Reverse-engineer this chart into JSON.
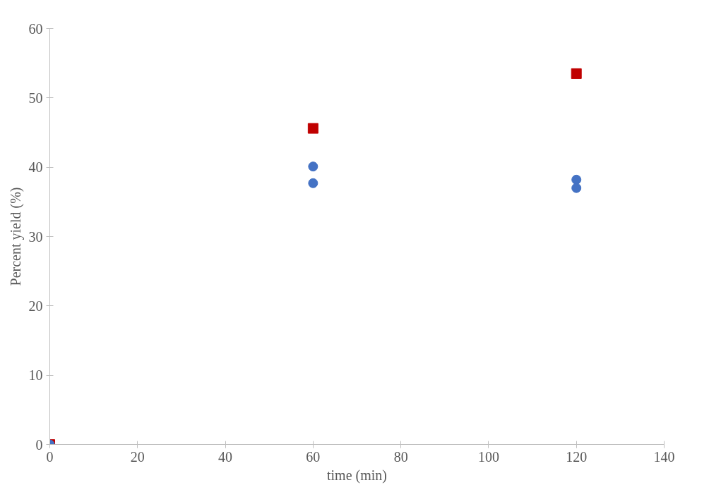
{
  "chart_data": {
    "type": "scatter",
    "xlabel": "time (min)",
    "ylabel": "Percent yield (%)",
    "xlim": [
      0,
      140
    ],
    "ylim": [
      0,
      60
    ],
    "xticks": [
      0,
      20,
      40,
      60,
      80,
      100,
      120,
      140
    ],
    "yticks": [
      0,
      10,
      20,
      30,
      40,
      50,
      60
    ],
    "grid": false,
    "series": [
      {
        "color": "#c00000",
        "marker": "square",
        "x": [
          0,
          60,
          120
        ],
        "values": [
          0,
          45.6,
          53.5
        ]
      },
      {
        "color": "#4472c4",
        "marker": "circle",
        "x": [
          0,
          60,
          60,
          120,
          120
        ],
        "values": [
          0,
          40.1,
          37.7,
          38.2,
          37.0
        ]
      }
    ]
  }
}
